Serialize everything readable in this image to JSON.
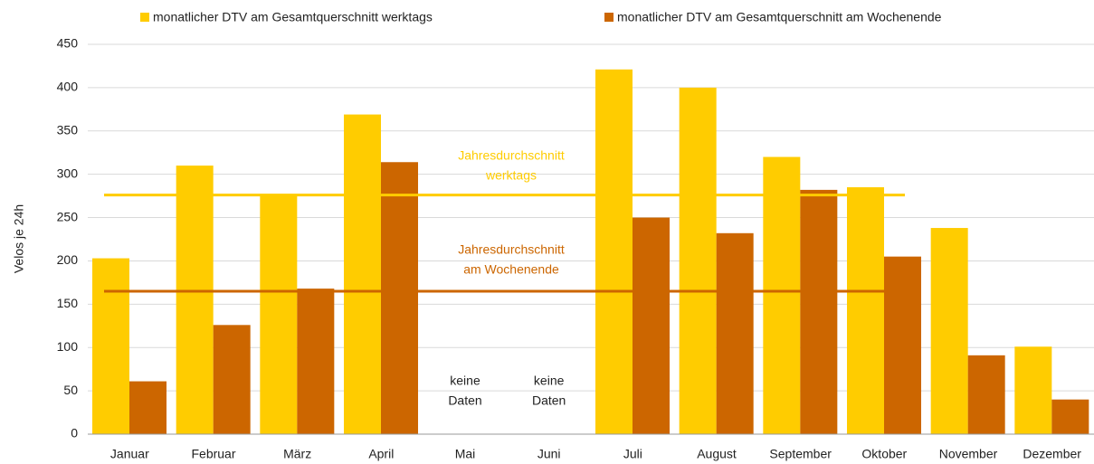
{
  "chart_data": {
    "type": "bar",
    "ylabel": "Velos je 24h",
    "categories": [
      "Januar",
      "Februar",
      "März",
      "April",
      "Mai",
      "Juni",
      "Juli",
      "August",
      "September",
      "Oktober",
      "November",
      "Dezember"
    ],
    "series": [
      {
        "name": "monatlicher DTV am Gesamtquerschnitt werktags",
        "color": "#ffcc00",
        "values": [
          203,
          310,
          276,
          369,
          null,
          null,
          421,
          400,
          320,
          285,
          238,
          101
        ]
      },
      {
        "name": "monatlicher DTV am Gesamtquerschnitt am Wochenende",
        "color": "#cc6600",
        "values": [
          61,
          126,
          168,
          314,
          null,
          null,
          250,
          232,
          282,
          205,
          91,
          40
        ]
      }
    ],
    "reference_lines": [
      {
        "value": 276,
        "color": "#ffcc00",
        "label": [
          "Jahresdurchschnitt",
          "werktags"
        ]
      },
      {
        "value": 165,
        "color": "#cc6600",
        "label": [
          "Jahresdurchschnitt",
          "am Wochenende"
        ]
      }
    ],
    "notes": [
      null,
      null,
      null,
      null,
      [
        "keine",
        "Daten"
      ],
      [
        "keine",
        "Daten"
      ],
      null,
      null,
      null,
      null,
      null,
      null
    ],
    "ylim": [
      0,
      450
    ],
    "yticks": [
      0,
      50,
      100,
      150,
      200,
      250,
      300,
      350,
      400,
      450
    ],
    "grid": true,
    "legend": "top"
  }
}
